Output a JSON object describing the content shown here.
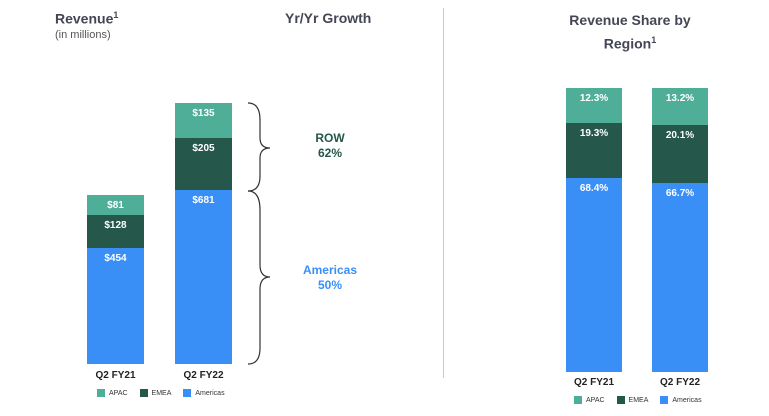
{
  "colors": {
    "APAC": "#4fae97",
    "EMEA": "#25574b",
    "Americas": "#3a8ff7",
    "ROW": "#25574b"
  },
  "chart_data": [
    {
      "type": "bar",
      "stacked": true,
      "title": "Revenue",
      "title_sup": "1",
      "subtitle": "(in millions)",
      "categories": [
        "Q2 FY21",
        "Q2 FY22"
      ],
      "series": [
        {
          "name": "Americas",
          "values": [
            454,
            681
          ],
          "labels": [
            "$454",
            "$681"
          ]
        },
        {
          "name": "EMEA",
          "values": [
            128,
            205
          ],
          "labels": [
            "$128",
            "$205"
          ]
        },
        {
          "name": "APAC",
          "values": [
            81,
            135
          ],
          "labels": [
            "$81",
            "$135"
          ]
        }
      ],
      "legend": [
        "APAC",
        "EMEA",
        "Americas"
      ],
      "growth": {
        "title": "Yr/Yr Growth",
        "items": [
          {
            "name": "ROW",
            "value": "62%"
          },
          {
            "name": "Americas",
            "value": "50%"
          }
        ]
      }
    },
    {
      "type": "bar",
      "stacked": true,
      "title": "Revenue Share by Region",
      "title_sup": "1",
      "categories": [
        "Q2 FY21",
        "Q2 FY22"
      ],
      "series": [
        {
          "name": "Americas",
          "values": [
            68.4,
            66.7
          ],
          "labels": [
            "68.4%",
            "66.7%"
          ]
        },
        {
          "name": "EMEA",
          "values": [
            19.3,
            20.1
          ],
          "labels": [
            "19.3%",
            "20.1%"
          ]
        },
        {
          "name": "APAC",
          "values": [
            12.3,
            13.2
          ],
          "labels": [
            "12.3%",
            "13.2%"
          ]
        }
      ],
      "legend": [
        "APAC",
        "EMEA",
        "Americas"
      ],
      "ylim": [
        0,
        100
      ]
    }
  ]
}
